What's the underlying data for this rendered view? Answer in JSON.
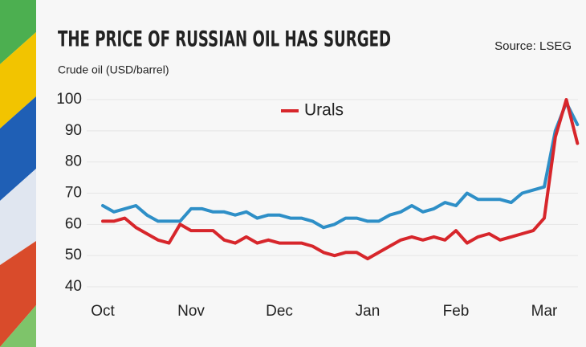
{
  "chart_data": {
    "type": "line",
    "title": "THE PRICE OF RUSSIAN OIL HAS SURGED",
    "source": "Source: LSEG",
    "y_label": "Crude oil (USD/barrel)",
    "categories": [
      "Oct",
      null,
      null,
      null,
      null,
      null,
      null,
      null,
      "Nov",
      null,
      null,
      null,
      null,
      null,
      null,
      null,
      "Dec",
      null,
      null,
      null,
      null,
      null,
      null,
      null,
      "Jan",
      null,
      null,
      null,
      null,
      null,
      null,
      null,
      "Feb",
      null,
      null,
      null,
      null,
      null,
      null,
      null,
      "Mar",
      null,
      null,
      null
    ],
    "series": [
      {
        "color": "#2e8fc7",
        "values": [
          66,
          64,
          65,
          66,
          63,
          61,
          61,
          61,
          65,
          65,
          64,
          64,
          63,
          64,
          62,
          63,
          63,
          62,
          62,
          61,
          59,
          60,
          62,
          62,
          61,
          61,
          63,
          64,
          66,
          64,
          65,
          67,
          66,
          70,
          68,
          68,
          68,
          67,
          70,
          71,
          72,
          90,
          99,
          92
        ]
      },
      {
        "name": "Urals",
        "color": "#d7262b",
        "values": [
          61,
          61,
          62,
          59,
          57,
          55,
          54,
          60,
          58,
          58,
          58,
          55,
          54,
          56,
          54,
          55,
          54,
          54,
          54,
          53,
          51,
          50,
          51,
          51,
          49,
          51,
          53,
          55,
          56,
          55,
          56,
          55,
          58,
          54,
          56,
          57,
          55,
          56,
          57,
          58,
          62,
          88,
          100,
          86
        ]
      }
    ],
    "ylim": [
      40,
      100
    ],
    "yticks": [
      40,
      50,
      60,
      70,
      80,
      90,
      100
    ],
    "grid": true
  }
}
